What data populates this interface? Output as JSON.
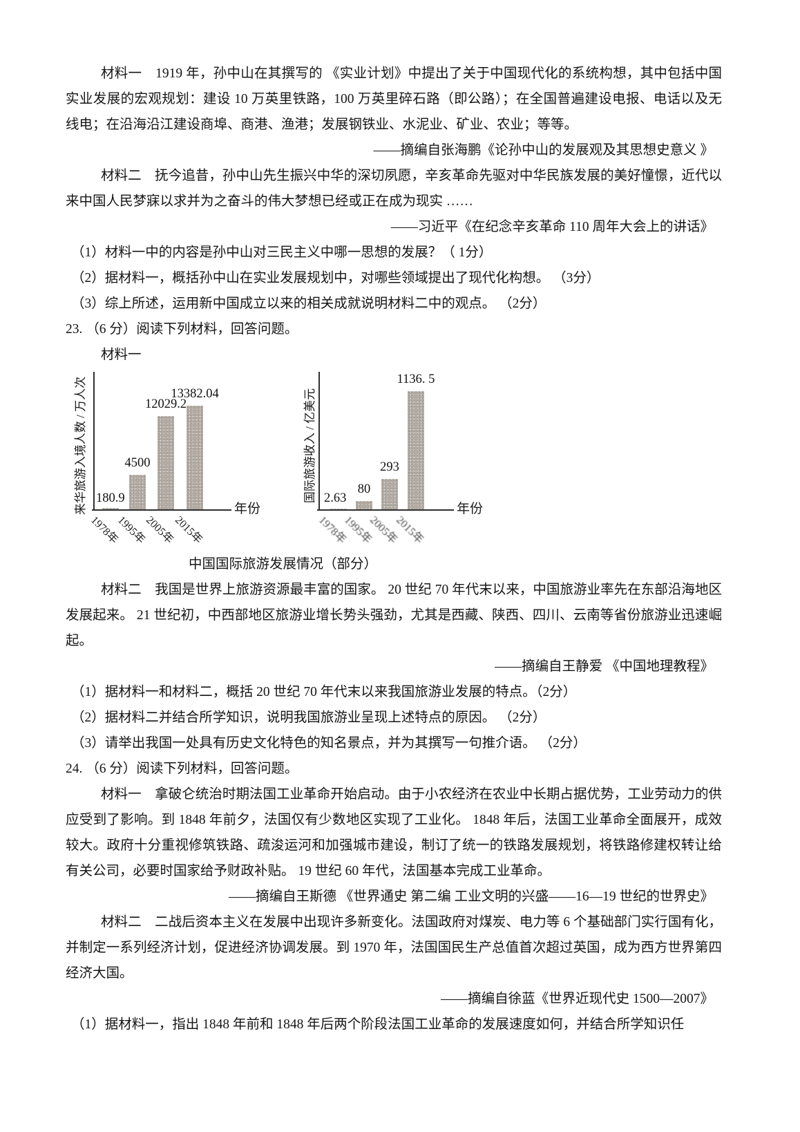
{
  "document": {
    "q22": {
      "material1": "材料一　1919 年，孙中山在其撰写的 《实业计划》中提出了关于中国现代化的系统构想，其中包括中国实业发展的宏观规划：建设 10 万英里铁路，100 万英里碎石路（即公路）；在全国普遍建设电报、电话以及无线电；在沿海沿江建设商埠、商港、渔港；发展钢铁业、水泥业、矿业、农业；等等。",
      "material1_source": "——摘编自张海鹏《论孙中山的发展观及其思想史意义 》",
      "material2": "材料二　抚今追昔，孙中山先生振兴中华的深切夙愿，辛亥革命先驱对中华民族发展的美好憧憬，近代以来中国人民梦寐以求并为之奋斗的伟大梦想已经或正在成为现实 ……",
      "material2_source": "——习近平《在纪念辛亥革命 110 周年大会上的讲话》",
      "q1": "（1）材料一中的内容是孙中山对三民主义中哪一思想的发展？（ 1分）",
      "q2": "（2）据材料一，概括孙中山在实业发展规划中，对哪些领域提出了现代化构想。 （3分）",
      "q3": "（3）综上所述，运用新中国成立以来的相关成就说明材料二中的观点。 （2分）"
    },
    "q23": {
      "header": "23. （6 分）阅读下列材料，回答问题。",
      "material1_label": "材料一",
      "chart_caption": "中国国际旅游发展情况（部分）",
      "material2": "材料二　我国是世界上旅游资源最丰富的国家。 20 世纪 70 年代末以来，中国旅游业率先在东部沿海地区发展起来。 21 世纪初，中西部地区旅游业增长势头强劲，尤其是西藏、陕西、四川、云南等省份旅游业迅速崛起。",
      "material2_source": "——摘编自王静爱 《中国地理教程》",
      "q1": "（1）据材料一和材料二，概括 20 世纪 70 年代末以来我国旅游业发展的特点。（2分）",
      "q2": "（2）据材料二并结合所学知识，说明我国旅游业呈现上述特点的原因。 （2分）",
      "q3": "（3）请举出我国一处具有历史文化特色的知名景点，并为其撰写一句推介语。 （2分）"
    },
    "q24": {
      "header": "24. （6 分）阅读下列材料，回答问题。",
      "material1": "材料一　拿破仑统治时期法国工业革命开始启动。由于小农经济在农业中长期占据优势，工业劳动力的供应受到了影响。到 1848 年前夕，法国仅有少数地区实现了工业化。 1848 年后，法国工业革命全面展开，成效较大。政府十分重视修筑铁路、疏浚运河和加强城市建设，制订了统一的铁路发展规划，将铁路修建权转让给有关公司，必要时国家给予财政补贴。 19 世纪 60 年代，法国基本完成工业革命。",
      "material1_source": "——摘编自王斯德 《世界通史 第二编 工业文明的兴盛——16—19 世纪的世界史》",
      "material2": "材料二　二战后资本主义在发展中出现许多新变化。法国政府对煤炭、电力等 6 个基础部门实行国有化，并制定一系列经济计划，促进经济协调发展。到 1970 年，法国国民生产总值首次超过英国，成为西方世界第四经济大国。",
      "material2_source": "——摘编自徐蓝《世界近现代史 1500—2007》",
      "q1_partial": "（1）据材料一，指出 1848 年前和 1848 年后两个阶段法国工业革命的发展速度如何，并结合所学知识任"
    }
  },
  "chart_data": [
    {
      "type": "bar",
      "title": "中国国际旅游发展情况（部分）——来华旅游入境人数",
      "categories": [
        "1978年",
        "1995年",
        "2005年",
        "2015年"
      ],
      "values": [
        180.9,
        4500,
        12029.2,
        13382.04
      ],
      "value_labels": [
        "180.9",
        "4500",
        "12029.2",
        "13382.04"
      ],
      "xlabel": "年份",
      "ylabel": "来华旅游入境人数 / 万人次",
      "ylim": [
        0,
        13382.04
      ],
      "grid": false,
      "legend": "none",
      "bar_color": "#b3ada6"
    },
    {
      "type": "bar",
      "title": "中国国际旅游发展情况（部分）——国际旅游收入",
      "categories": [
        "1978年",
        "1995年",
        "2005年",
        "2015年"
      ],
      "values": [
        2.63,
        80,
        293,
        1136.5
      ],
      "value_labels": [
        "2.63",
        "80",
        "293",
        "1136. 5"
      ],
      "xlabel": "年份",
      "ylabel": "国际旅游收入 / 亿美元",
      "ylim": [
        0,
        1136.5
      ],
      "grid": false,
      "legend": "none",
      "bar_color": "#b3ada6"
    }
  ]
}
